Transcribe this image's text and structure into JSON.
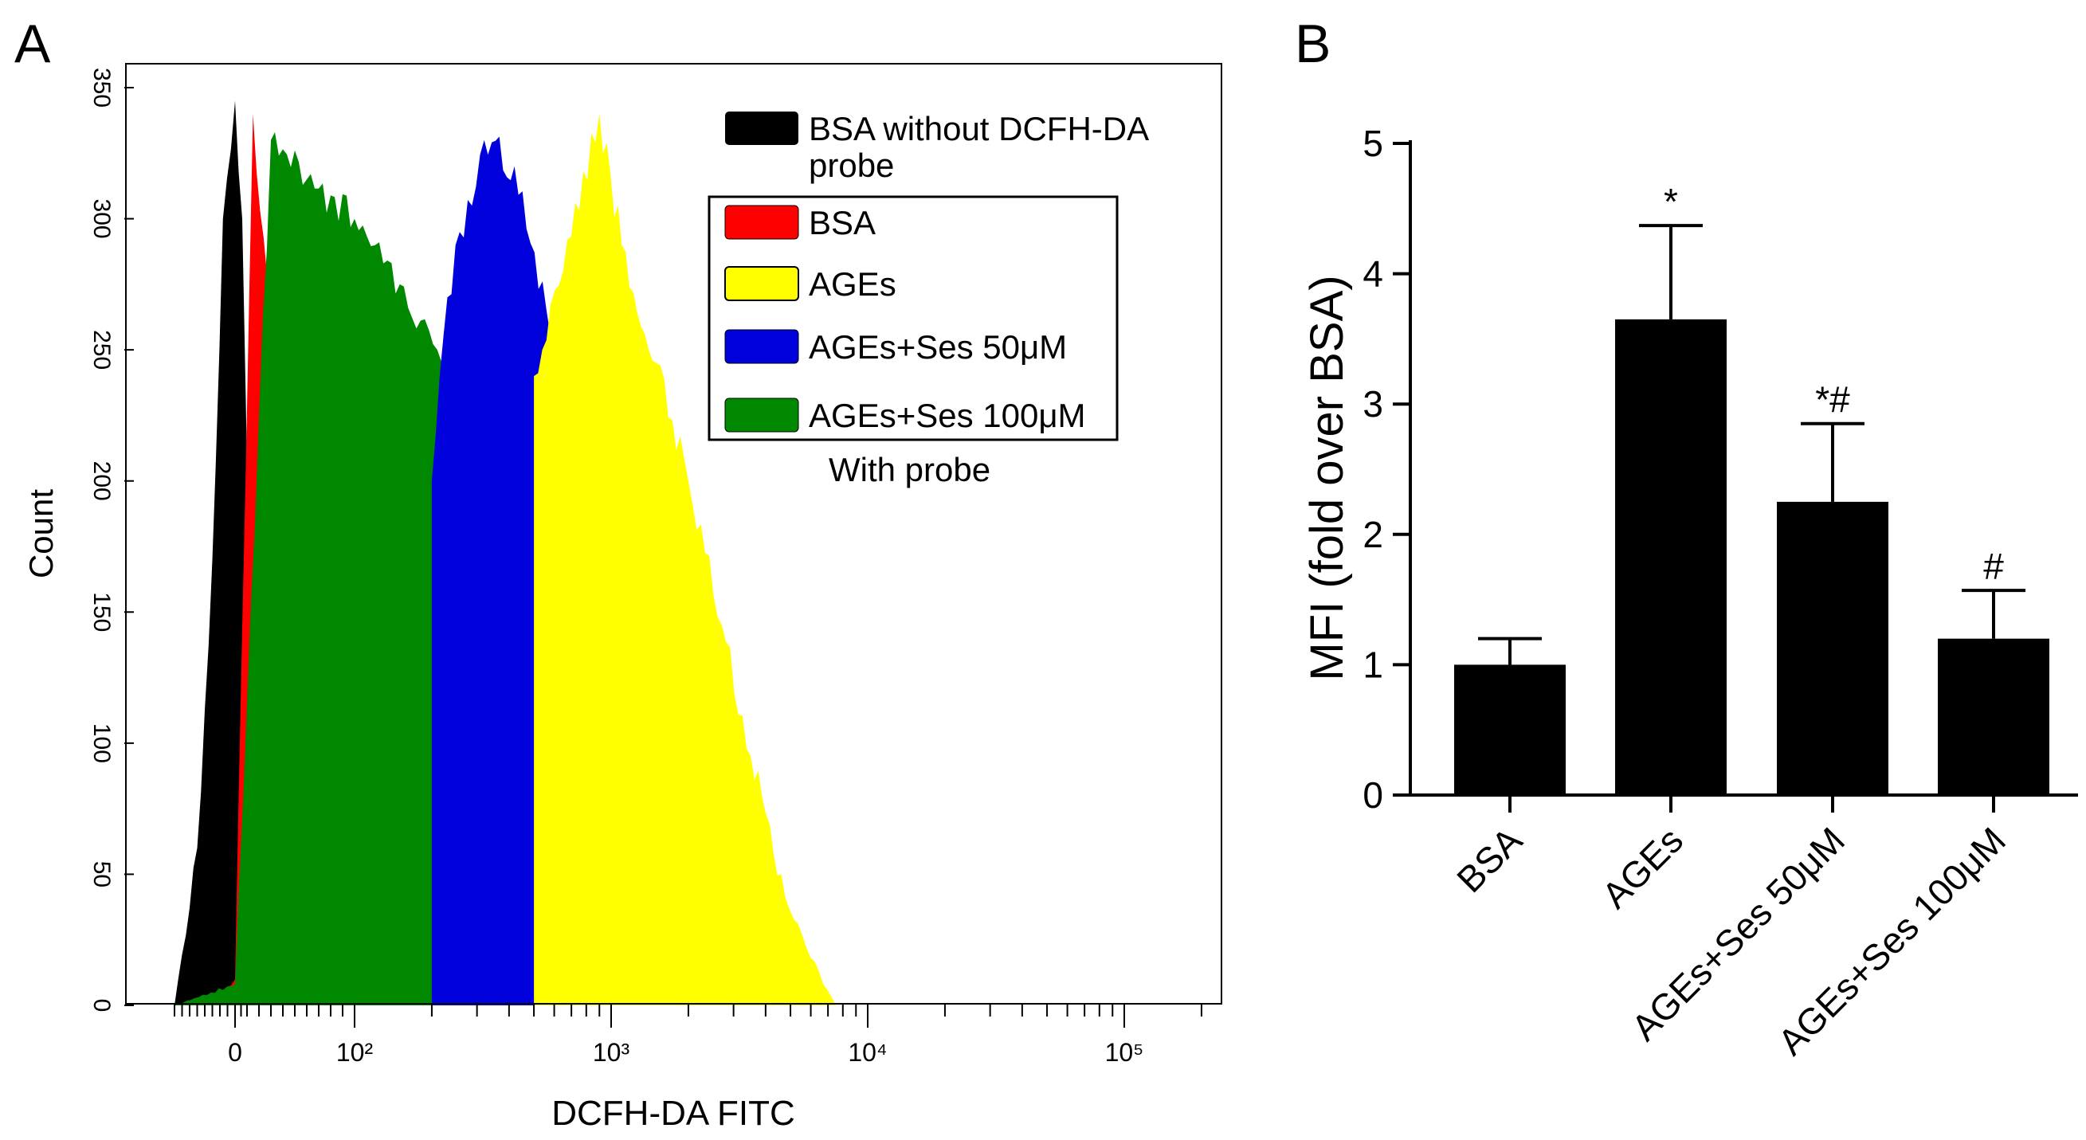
{
  "panel_a": {
    "label": "A",
    "legend": {
      "items": [
        {
          "label": "BSA without DCFH-DA",
          "label_line2": "probe",
          "color": "#000000"
        },
        {
          "label": "BSA",
          "color": "#ff0000"
        },
        {
          "label": "AGEs",
          "color": "#ffff00"
        },
        {
          "label": "AGEs+Ses 50μM",
          "color": "#0000dd"
        },
        {
          "label": "AGEs+Ses 100μM",
          "color": "#008800"
        }
      ],
      "caption": "With probe"
    }
  },
  "panel_b": {
    "label": "B"
  },
  "chart_data": [
    {
      "type": "area",
      "xlabel": "DCFH-DA FITC",
      "ylabel": "Count",
      "x_scale": "biexponential",
      "x_ticks": [
        "0",
        "10²",
        "10³",
        "10⁴",
        "10⁵"
      ],
      "x_tick_values": [
        0,
        100,
        1000,
        10000,
        100000
      ],
      "y_ticks": [
        0,
        50,
        100,
        150,
        200,
        250,
        300,
        350
      ],
      "ylim": [
        0,
        350
      ],
      "series": [
        {
          "name": "BSA without DCFH-DA probe",
          "color": "#000000",
          "x": [
            -40,
            -25,
            -15,
            -8,
            0,
            6,
            12,
            22,
            35,
            50
          ],
          "y": [
            0,
            60,
            170,
            300,
            345,
            300,
            150,
            60,
            15,
            0
          ]
        },
        {
          "name": "BSA",
          "color": "#ff0000",
          "x": [
            -15,
            0,
            15,
            30,
            60,
            100,
            150,
            220,
            320,
            450,
            650,
            900,
            1150
          ],
          "y": [
            0,
            10,
            340,
            260,
            250,
            235,
            205,
            170,
            125,
            80,
            30,
            8,
            0
          ]
        },
        {
          "name": "AGEs+Ses 100μM",
          "color": "#008800",
          "x": [
            -40,
            0,
            30,
            60,
            100,
            150,
            210,
            300,
            400,
            560,
            700
          ],
          "y": [
            0,
            8,
            330,
            315,
            300,
            275,
            250,
            220,
            180,
            60,
            0
          ]
        },
        {
          "name": "AGEs+Ses 50μM",
          "color": "#0000dd",
          "x": [
            200,
            230,
            320,
            420,
            560,
            700,
            900,
            1200,
            1600,
            2100,
            2500
          ],
          "y": [
            200,
            270,
            330,
            320,
            265,
            200,
            130,
            70,
            25,
            5,
            0
          ]
        },
        {
          "name": "AGEs",
          "color": "#ffff00",
          "x": [
            500,
            650,
            900,
            1100,
            1500,
            2000,
            2700,
            3500,
            4600,
            6000,
            7500
          ],
          "y": [
            240,
            280,
            340,
            290,
            245,
            200,
            145,
            95,
            50,
            18,
            0
          ]
        }
      ]
    },
    {
      "type": "bar",
      "categories": [
        "BSA",
        "AGEs",
        "AGEs+Ses 50μM",
        "AGEs+Ses 100μM"
      ],
      "values": [
        1.0,
        3.65,
        2.25,
        1.2
      ],
      "errors": [
        0.2,
        0.72,
        0.6,
        0.37
      ],
      "annotations": [
        "",
        "*",
        "*#",
        "#"
      ],
      "ylabel": "MFI (fold over BSA)",
      "xlabel": "",
      "ylim": [
        0,
        5
      ],
      "y_ticks": [
        0,
        1,
        2,
        3,
        4,
        5
      ],
      "color": "#000000"
    }
  ]
}
